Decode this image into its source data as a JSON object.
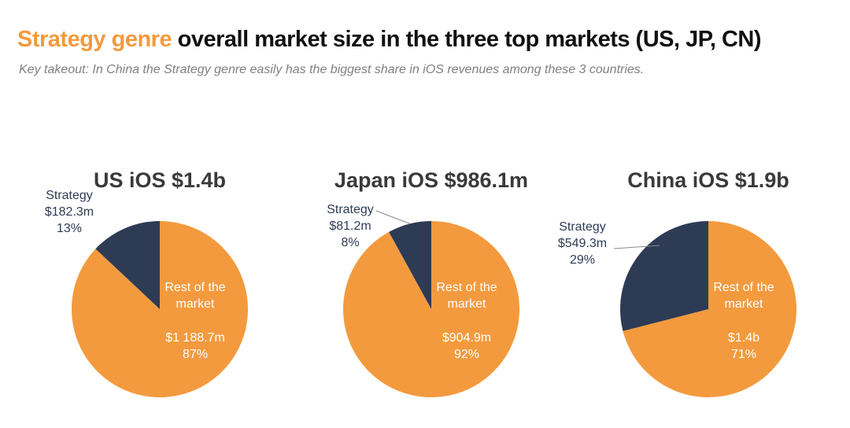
{
  "header": {
    "title_highlight": "Strategy genre",
    "title": "overall market size in the three top markets (US, JP, CN)",
    "subtitle": "Key takeout: In China the Strategy genre easily has the biggest share in iOS revenues among these 3 countries."
  },
  "chart_data": [
    {
      "type": "pie",
      "title": "US iOS $1.4b",
      "categories": [
        "Strategy",
        "Rest of the market"
      ],
      "amounts": [
        "$182.3m",
        "$1 188.7m"
      ],
      "values": [
        13,
        87
      ],
      "value_labels": [
        "13%",
        "87%"
      ],
      "colors": [
        "#2e3b55",
        "#f39a3e"
      ]
    },
    {
      "type": "pie",
      "title": "Japan iOS $986.1m",
      "categories": [
        "Strategy",
        "Rest of the market"
      ],
      "amounts": [
        "$81.2m",
        "$904.9m"
      ],
      "values": [
        8,
        92
      ],
      "value_labels": [
        "8%",
        "92%"
      ],
      "colors": [
        "#2e3b55",
        "#f39a3e"
      ]
    },
    {
      "type": "pie",
      "title": "China iOS $1.9b",
      "categories": [
        "Strategy",
        "Rest of the market"
      ],
      "amounts": [
        "$549.3m",
        "$1.4b"
      ],
      "values": [
        29,
        71
      ],
      "value_labels": [
        "29%",
        "71%"
      ],
      "colors": [
        "#2e3b55",
        "#f39a3e"
      ]
    }
  ]
}
